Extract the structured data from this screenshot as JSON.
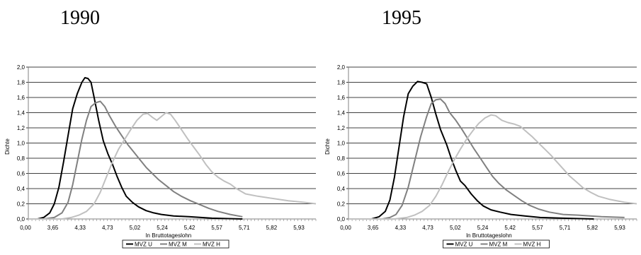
{
  "panels": [
    {
      "year_label": "1990",
      "chart_data": {
        "type": "line",
        "xlabel": "ln Bruttotageslohn",
        "ylabel": "Dichte",
        "ylim": [
          0,
          2.0
        ],
        "y_ticks": [
          "0,0",
          "0,2",
          "0,4",
          "0,6",
          "0,8",
          "1,0",
          "1,2",
          "1,4",
          "1,6",
          "1,8",
          "2,0"
        ],
        "x_ticks": [
          "0,00",
          "3,65",
          "4,33",
          "4,73",
          "5,02",
          "5,24",
          "5,42",
          "5,57",
          "5,71",
          "5,82",
          "5,93"
        ],
        "grid": true,
        "legend_position": "bottom",
        "series": [
          {
            "name": "MVZ U",
            "color": "#000000",
            "points": [
              [
                0,
                0
              ],
              [
                6,
                0
              ],
              [
                10,
                0.02
              ],
              [
                14,
                0.08
              ],
              [
                17,
                0.2
              ],
              [
                20,
                0.42
              ],
              [
                23,
                0.75
              ],
              [
                26,
                1.1
              ],
              [
                29,
                1.45
              ],
              [
                32,
                1.65
              ],
              [
                35,
                1.8
              ],
              [
                37,
                1.86
              ],
              [
                39,
                1.85
              ],
              [
                41,
                1.8
              ],
              [
                43,
                1.6
              ],
              [
                46,
                1.3
              ],
              [
                49,
                1.03
              ],
              [
                52,
                0.86
              ],
              [
                55,
                0.72
              ],
              [
                58,
                0.56
              ],
              [
                61,
                0.42
              ],
              [
                64,
                0.3
              ],
              [
                68,
                0.22
              ],
              [
                72,
                0.16
              ],
              [
                77,
                0.11
              ],
              [
                82,
                0.08
              ],
              [
                87,
                0.06
              ],
              [
                95,
                0.04
              ],
              [
                105,
                0.03
              ],
              [
                120,
                0.01
              ],
              [
                140,
                0
              ]
            ]
          },
          {
            "name": "MVZ M",
            "color": "#808080",
            "points": [
              [
                0,
                0
              ],
              [
                10,
                0
              ],
              [
                17,
                0.02
              ],
              [
                22,
                0.08
              ],
              [
                26,
                0.22
              ],
              [
                29,
                0.45
              ],
              [
                32,
                0.75
              ],
              [
                35,
                1.05
              ],
              [
                38,
                1.3
              ],
              [
                41,
                1.48
              ],
              [
                44,
                1.53
              ],
              [
                47,
                1.55
              ],
              [
                50,
                1.48
              ],
              [
                53,
                1.36
              ],
              [
                57,
                1.22
              ],
              [
                61,
                1.1
              ],
              [
                65,
                0.98
              ],
              [
                69,
                0.88
              ],
              [
                73,
                0.78
              ],
              [
                77,
                0.68
              ],
              [
                81,
                0.6
              ],
              [
                85,
                0.52
              ],
              [
                90,
                0.44
              ],
              [
                95,
                0.36
              ],
              [
                100,
                0.3
              ],
              [
                106,
                0.24
              ],
              [
                112,
                0.19
              ],
              [
                118,
                0.14
              ],
              [
                124,
                0.1
              ],
              [
                132,
                0.06
              ],
              [
                140,
                0.03
              ]
            ]
          },
          {
            "name": "MVZ H",
            "color": "#c0c0c0",
            "points": [
              [
                0,
                0
              ],
              [
                22,
                0
              ],
              [
                28,
                0.02
              ],
              [
                33,
                0.05
              ],
              [
                38,
                0.1
              ],
              [
                43,
                0.2
              ],
              [
                47,
                0.35
              ],
              [
                51,
                0.55
              ],
              [
                55,
                0.75
              ],
              [
                59,
                0.92
              ],
              [
                63,
                1.05
              ],
              [
                67,
                1.18
              ],
              [
                71,
                1.3
              ],
              [
                75,
                1.38
              ],
              [
                78,
                1.39
              ],
              [
                81,
                1.34
              ],
              [
                84,
                1.3
              ],
              [
                87,
                1.35
              ],
              [
                90,
                1.4
              ],
              [
                93,
                1.38
              ],
              [
                96,
                1.3
              ],
              [
                100,
                1.18
              ],
              [
                104,
                1.06
              ],
              [
                108,
                0.95
              ],
              [
                112,
                0.84
              ],
              [
                116,
                0.72
              ],
              [
                120,
                0.62
              ],
              [
                124,
                0.55
              ],
              [
                128,
                0.5
              ],
              [
                132,
                0.46
              ],
              [
                136,
                0.4
              ],
              [
                142,
                0.33
              ],
              [
                150,
                0.3
              ],
              [
                160,
                0.27
              ],
              [
                170,
                0.24
              ],
              [
                180,
                0.22
              ],
              [
                188,
                0.2
              ]
            ]
          }
        ]
      }
    },
    {
      "year_label": "1995",
      "chart_data": {
        "type": "line",
        "xlabel": "ln Bruttotageslohn",
        "ylabel": "Dichte",
        "ylim": [
          0,
          2.0
        ],
        "y_ticks": [
          "0,0",
          "0,2",
          "0,4",
          "0,6",
          "0,8",
          "1,0",
          "1,2",
          "1,4",
          "1,6",
          "1,8",
          "2,0"
        ],
        "x_ticks": [
          "0,00",
          "3,65",
          "4,33",
          "4,73",
          "5,02",
          "5,24",
          "5,42",
          "5,57",
          "5,71",
          "5,82",
          "5,93"
        ],
        "grid": true,
        "legend_position": "bottom",
        "series": [
          {
            "name": "MVZ U",
            "color": "#000000",
            "points": [
              [
                0,
                0
              ],
              [
                15,
                0
              ],
              [
                20,
                0.03
              ],
              [
                24,
                0.1
              ],
              [
                27,
                0.25
              ],
              [
                30,
                0.55
              ],
              [
                33,
                0.95
              ],
              [
                36,
                1.35
              ],
              [
                39,
                1.65
              ],
              [
                42,
                1.75
              ],
              [
                45,
                1.81
              ],
              [
                48,
                1.8
              ],
              [
                51,
                1.78
              ],
              [
                54,
                1.6
              ],
              [
                57,
                1.38
              ],
              [
                60,
                1.18
              ],
              [
                64,
                0.98
              ],
              [
                67,
                0.8
              ],
              [
                70,
                0.64
              ],
              [
                73,
                0.5
              ],
              [
                76,
                0.44
              ],
              [
                80,
                0.33
              ],
              [
                84,
                0.24
              ],
              [
                88,
                0.17
              ],
              [
                93,
                0.12
              ],
              [
                99,
                0.09
              ],
              [
                106,
                0.06
              ],
              [
                115,
                0.04
              ],
              [
                125,
                0.02
              ],
              [
                140,
                0.01
              ],
              [
                160,
                0
              ]
            ]
          },
          {
            "name": "MVZ M",
            "color": "#808080",
            "points": [
              [
                0,
                0
              ],
              [
                22,
                0
              ],
              [
                27,
                0.02
              ],
              [
                31,
                0.06
              ],
              [
                35,
                0.18
              ],
              [
                39,
                0.42
              ],
              [
                43,
                0.75
              ],
              [
                47,
                1.08
              ],
              [
                51,
                1.35
              ],
              [
                54,
                1.52
              ],
              [
                57,
                1.57
              ],
              [
                60,
                1.58
              ],
              [
                63,
                1.52
              ],
              [
                66,
                1.4
              ],
              [
                70,
                1.3
              ],
              [
                74,
                1.18
              ],
              [
                78,
                1.05
              ],
              [
                82,
                0.92
              ],
              [
                86,
                0.8
              ],
              [
                90,
                0.68
              ],
              [
                94,
                0.56
              ],
              [
                98,
                0.47
              ],
              [
                103,
                0.38
              ],
              [
                108,
                0.31
              ],
              [
                113,
                0.24
              ],
              [
                118,
                0.18
              ],
              [
                124,
                0.13
              ],
              [
                131,
                0.09
              ],
              [
                140,
                0.06
              ],
              [
                150,
                0.05
              ],
              [
                165,
                0.03
              ],
              [
                180,
                0.02
              ]
            ]
          },
          {
            "name": "MVZ H",
            "color": "#c0c0c0",
            "points": [
              [
                0,
                0
              ],
              [
                30,
                0
              ],
              [
                38,
                0.02
              ],
              [
                43,
                0.05
              ],
              [
                48,
                0.1
              ],
              [
                53,
                0.18
              ],
              [
                57,
                0.3
              ],
              [
                61,
                0.45
              ],
              [
                65,
                0.62
              ],
              [
                69,
                0.78
              ],
              [
                73,
                0.92
              ],
              [
                77,
                1.05
              ],
              [
                81,
                1.16
              ],
              [
                85,
                1.26
              ],
              [
                89,
                1.33
              ],
              [
                93,
                1.37
              ],
              [
                96,
                1.36
              ],
              [
                100,
                1.3
              ],
              [
                104,
                1.27
              ],
              [
                108,
                1.25
              ],
              [
                112,
                1.22
              ],
              [
                116,
                1.15
              ],
              [
                120,
                1.08
              ],
              [
                124,
                1.0
              ],
              [
                128,
                0.92
              ],
              [
                132,
                0.84
              ],
              [
                136,
                0.75
              ],
              [
                140,
                0.66
              ],
              [
                144,
                0.57
              ],
              [
                148,
                0.5
              ],
              [
                153,
                0.41
              ],
              [
                158,
                0.35
              ],
              [
                163,
                0.3
              ],
              [
                170,
                0.26
              ],
              [
                180,
                0.22
              ],
              [
                188,
                0.2
              ]
            ]
          }
        ]
      }
    }
  ]
}
